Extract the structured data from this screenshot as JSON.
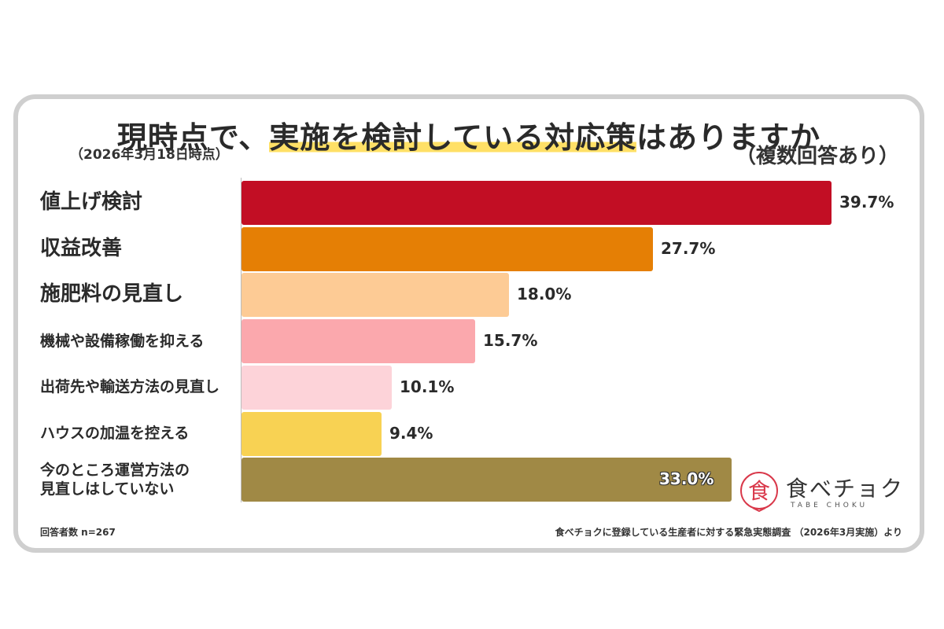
{
  "title_pre": "現時点で、",
  "title_highlight": "実施を検討している対応策",
  "title_post": "はありますか",
  "date_note": "（2026年3月18日時点）",
  "multi_note": "（複数回答あり）",
  "footer_left": "回答者数 n=267",
  "footer_right": "食べチョクに登録している生産者に対する緊急実態調査 （2026年3月実施）より",
  "logo": {
    "text": "食べチョク",
    "sub": "TABE CHOKU",
    "mark_color": "#d9384a"
  },
  "chart_data": {
    "type": "bar",
    "orientation": "horizontal",
    "categories": [
      "値上げ検討",
      "収益改善",
      "施肥料の見直し",
      "機械や設備稼働を抑える",
      "出荷先や輸送方法の見直し",
      "ハウスの加温を控える",
      "今のところ運営方法の見直しはしていない"
    ],
    "category_lines": [
      [
        "値上げ検討"
      ],
      [
        "収益改善"
      ],
      [
        "施肥料の見直し"
      ],
      [
        "機械や設備稼働を抑える"
      ],
      [
        "出荷先や輸送方法の見直し"
      ],
      [
        "ハウスの加温を控える"
      ],
      [
        "今のところ運営方法の",
        "見直しはしていない"
      ]
    ],
    "values": [
      39.7,
      27.7,
      18.0,
      15.7,
      10.1,
      9.4,
      33.0
    ],
    "value_labels": [
      "39.7%",
      "27.7%",
      "18.0%",
      "15.7%",
      "10.1%",
      "9.4%",
      "33.0%"
    ],
    "colors": [
      "#c20e24",
      "#e57f05",
      "#fdcb95",
      "#fba8ad",
      "#fdd3d9",
      "#f8d253",
      "#a08945"
    ],
    "label_sizes": [
      "big",
      "big",
      "big",
      "small",
      "small",
      "small",
      "small"
    ],
    "unit": "%"
  }
}
